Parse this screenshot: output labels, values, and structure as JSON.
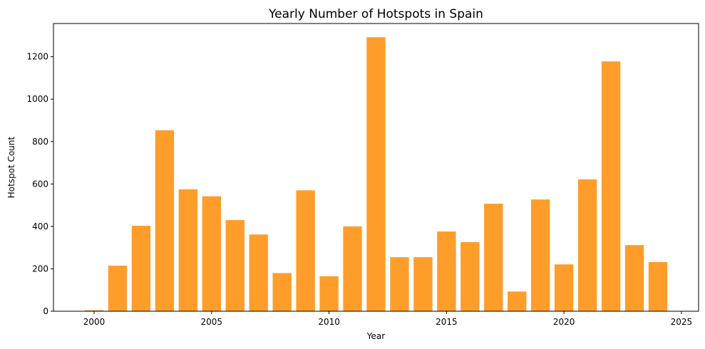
{
  "chart_data": {
    "type": "bar",
    "title": "Yearly Number of Hotspots in Spain",
    "xlabel": "Year",
    "ylabel": "Hotspot Count",
    "x": [
      2000,
      2001,
      2002,
      2003,
      2004,
      2005,
      2006,
      2007,
      2008,
      2009,
      2010,
      2011,
      2012,
      2013,
      2014,
      2015,
      2016,
      2017,
      2018,
      2019,
      2020,
      2021,
      2022,
      2023,
      2024
    ],
    "values": [
      5,
      215,
      403,
      853,
      575,
      542,
      430,
      362,
      180,
      570,
      165,
      400,
      1292,
      255,
      255,
      376,
      326,
      507,
      93,
      527,
      221,
      622,
      1178,
      312,
      232
    ],
    "xlim": [
      1998.27,
      2025.73
    ],
    "ylim": [
      0,
      1356.6
    ],
    "xticks": [
      "2000",
      "2005",
      "2010",
      "2015",
      "2020",
      "2025"
    ],
    "yticks": [
      "0",
      "200",
      "400",
      "600",
      "800",
      "1000",
      "1200"
    ],
    "bar_color": "#ff9d2a",
    "grid": false
  }
}
